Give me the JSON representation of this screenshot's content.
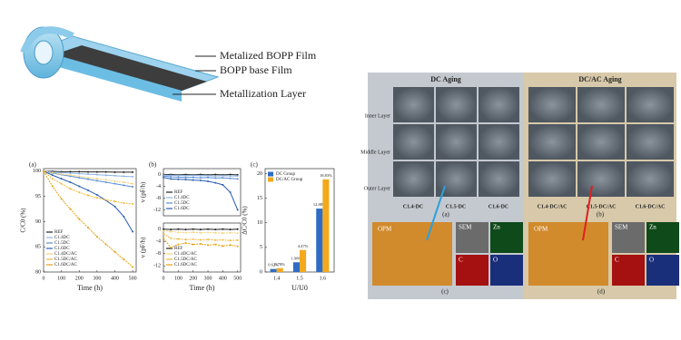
{
  "diagram": {
    "labels": [
      "Metalized BOPP Film",
      "BOPP base Film",
      "Metallization Layer"
    ]
  },
  "chart_data": [
    {
      "type": "line",
      "label": "(a)",
      "xlabel": "Time (h)",
      "ylabel": "C/C0 (%)",
      "x": [
        0,
        50,
        100,
        150,
        200,
        250,
        300,
        350,
        400,
        450,
        500
      ],
      "xlim": [
        0,
        520
      ],
      "xticks": [
        0,
        100,
        200,
        300,
        400,
        500
      ],
      "ylim": [
        80,
        100.5
      ],
      "yticks": [
        80,
        85,
        90,
        95,
        100
      ],
      "series": [
        {
          "name": "REF",
          "color": "#222222",
          "values": [
            100,
            99.95,
            99.9,
            99.9,
            99.9,
            99.85,
            99.85,
            99.85,
            99.8,
            99.8,
            99.8
          ]
        },
        {
          "name": "C1.4DC",
          "color": "#8fb3e0",
          "values": [
            100,
            99.8,
            99.7,
            99.6,
            99.5,
            99.4,
            99.3,
            99.2,
            99.1,
            99,
            98.9
          ]
        },
        {
          "name": "C1.5DC",
          "color": "#5b8fd6",
          "values": [
            100,
            99.6,
            99.3,
            99,
            98.7,
            98.4,
            98.1,
            97.8,
            97.5,
            97.2,
            96.9
          ]
        },
        {
          "name": "C1.6DC",
          "color": "#2a5fb0",
          "values": [
            100,
            99.2,
            98.5,
            97.8,
            97,
            96.2,
            95.3,
            94.2,
            93,
            91,
            88
          ]
        },
        {
          "name": "C1.4DC/AC",
          "color": "#f3d27a",
          "values": [
            100,
            99.7,
            99.4,
            99.2,
            99,
            98.7,
            98.5,
            98.3,
            98,
            97.8,
            97.5
          ]
        },
        {
          "name": "C1.5DC/AC",
          "color": "#f0b73c",
          "values": [
            100,
            98.5,
            97.5,
            96.5,
            95.8,
            95.2,
            94.7,
            94.3,
            94,
            93.7,
            93.5
          ]
        },
        {
          "name": "C1.6DC/AC",
          "color": "#e6a010",
          "values": [
            100,
            97,
            94.5,
            92.5,
            90.5,
            88.8,
            87,
            85.5,
            84,
            82.5,
            81
          ]
        }
      ]
    },
    {
      "type": "line",
      "label": "(b)",
      "ylabel": "v (pF/h)",
      "x": [
        0,
        50,
        100,
        150,
        200,
        250,
        300,
        350,
        400,
        450,
        500
      ],
      "xlim": [
        0,
        520
      ],
      "ylim": [
        -14,
        2
      ],
      "yticks": [
        -12,
        -8,
        -4,
        0
      ],
      "series": [
        {
          "name": "REF",
          "color": "#222222",
          "values": [
            0,
            0,
            -0.1,
            0,
            -0.1,
            0,
            -0.1,
            0,
            -0.1,
            0,
            -0.1
          ]
        },
        {
          "name": "C1.4DC",
          "color": "#8fb3e0",
          "values": [
            -0.2,
            -0.3,
            -0.3,
            -0.4,
            -0.3,
            -0.4,
            -0.4,
            -0.5,
            -0.4,
            -0.5,
            -0.5
          ]
        },
        {
          "name": "C1.5DC",
          "color": "#5b8fd6",
          "values": [
            -0.5,
            -0.8,
            -0.9,
            -1,
            -1,
            -1.1,
            -1,
            -1.2,
            -1.1,
            -1.3,
            -1.5
          ]
        },
        {
          "name": "C1.6DC",
          "color": "#2a5fb0",
          "values": [
            -1,
            -1.5,
            -1.6,
            -1.7,
            -1.9,
            -2,
            -2.3,
            -2.8,
            -3.5,
            -6,
            -12
          ]
        }
      ]
    },
    {
      "type": "line",
      "xlabel": "Time (h)",
      "ylabel": "v (pF/h)",
      "x": [
        0,
        50,
        100,
        150,
        200,
        250,
        300,
        350,
        400,
        450,
        500
      ],
      "xlim": [
        0,
        520
      ],
      "xticks": [
        0,
        100,
        200,
        300,
        400,
        500
      ],
      "ylim": [
        -14,
        2
      ],
      "yticks": [
        -12,
        -8,
        -4,
        0
      ],
      "series": [
        {
          "name": "REF",
          "color": "#222222",
          "values": [
            0,
            -0.1,
            0,
            -0.1,
            0,
            -0.1,
            0,
            -0.1,
            0,
            -0.1,
            0
          ]
        },
        {
          "name": "C1.4DC/AC",
          "color": "#f3d27a",
          "values": [
            -0.5,
            -0.8,
            -1,
            -1.1,
            -1,
            -1.2,
            -1.1,
            -1.2,
            -1.3,
            -1.2,
            -1.3
          ]
        },
        {
          "name": "C1.5DC/AC",
          "color": "#f0b73c",
          "values": [
            -1.5,
            -3,
            -3.2,
            -3.4,
            -3.3,
            -3.5,
            -3.4,
            -3.6,
            -3.5,
            -3.7,
            -3.6
          ]
        },
        {
          "name": "C1.6DC/AC",
          "color": "#e6a010",
          "values": [
            -3,
            -6,
            -5,
            -4.5,
            -5,
            -4.8,
            -5.2,
            -5,
            -5.5,
            -5.2,
            -5.6
          ]
        }
      ]
    },
    {
      "type": "bar",
      "label": "(c)",
      "xlabel": "U/U0",
      "ylabel": "ΔC/C0 (%)",
      "categories": [
        "1.4",
        "1.5",
        "1.6"
      ],
      "ylim": [
        0,
        21
      ],
      "yticks": [
        0,
        5,
        10,
        15,
        20
      ],
      "series": [
        {
          "name": "DC Group",
          "color": "#2f6cc4",
          "values": [
            0.62,
            1.98,
            12.88
          ],
          "value_labels": [
            "0.62%",
            "1.98%",
            "12.88%"
          ]
        },
        {
          "name": "DC/AC Group",
          "color": "#f3a91c",
          "values": [
            0.78,
            4.47,
            18.83
          ],
          "value_labels": [
            "0.78%",
            "4.47%",
            "18.83%"
          ]
        }
      ]
    }
  ],
  "micrographs": {
    "dc_title": "DC Aging",
    "dcac_title": "DC/AC Aging",
    "layers": [
      "Inner Layer",
      "Middle Layer",
      "Outer Layer"
    ],
    "dc_samples": [
      "C1.4-DC",
      "C1.5-DC",
      "C1.6-DC"
    ],
    "dcac_samples": [
      "C1.4-DC/AC",
      "C1.5-DC/AC",
      "C1.6-DC/AC"
    ],
    "panel_labels": [
      "(a)",
      "(b)",
      "(c)",
      "(d)"
    ],
    "maps": [
      "OPM",
      "SEM",
      "Zn",
      "C",
      "O"
    ]
  }
}
